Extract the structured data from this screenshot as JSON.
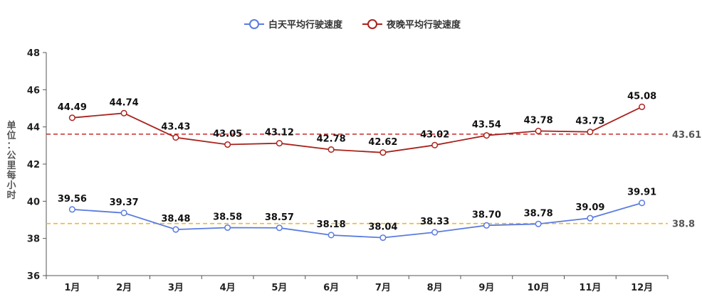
{
  "chart_data": {
    "type": "line",
    "categories": [
      "1月",
      "2月",
      "3月",
      "4月",
      "5月",
      "6月",
      "7月",
      "8月",
      "9月",
      "10月",
      "11月",
      "12月"
    ],
    "series": [
      {
        "name": "白天平均行驶速度",
        "color": "#5b7be0",
        "values": [
          39.56,
          39.37,
          38.48,
          38.58,
          38.57,
          38.18,
          38.04,
          38.33,
          38.7,
          38.78,
          39.09,
          39.91
        ],
        "labels": [
          "39.56",
          "39.37",
          "38.48",
          "38.58",
          "38.57",
          "38.18",
          "38.04",
          "38.33",
          "38.70",
          "38.78",
          "39.09",
          "39.91"
        ],
        "reference_line": {
          "value": 38.8,
          "label": "38.8",
          "color": "#f2b81f"
        }
      },
      {
        "name": "夜晚平均行驶速度",
        "color": "#a9231d",
        "values": [
          44.49,
          44.74,
          43.43,
          43.05,
          43.12,
          42.78,
          42.62,
          43.02,
          43.54,
          43.78,
          43.73,
          45.08
        ],
        "labels": [
          "44.49",
          "44.74",
          "43.43",
          "43.05",
          "43.12",
          "42.78",
          "42.62",
          "43.02",
          "43.54",
          "43.78",
          "43.73",
          "45.08"
        ],
        "reference_line": {
          "value": 43.61,
          "label": "43.61",
          "color": "#c92a2a"
        }
      }
    ],
    "ylabel": "单位：公里每小时",
    "ylim": [
      36,
      48
    ],
    "yticks": [
      "36",
      "38",
      "40",
      "42",
      "44",
      "46",
      "48"
    ],
    "grid": false,
    "legend_position": "top-center"
  }
}
